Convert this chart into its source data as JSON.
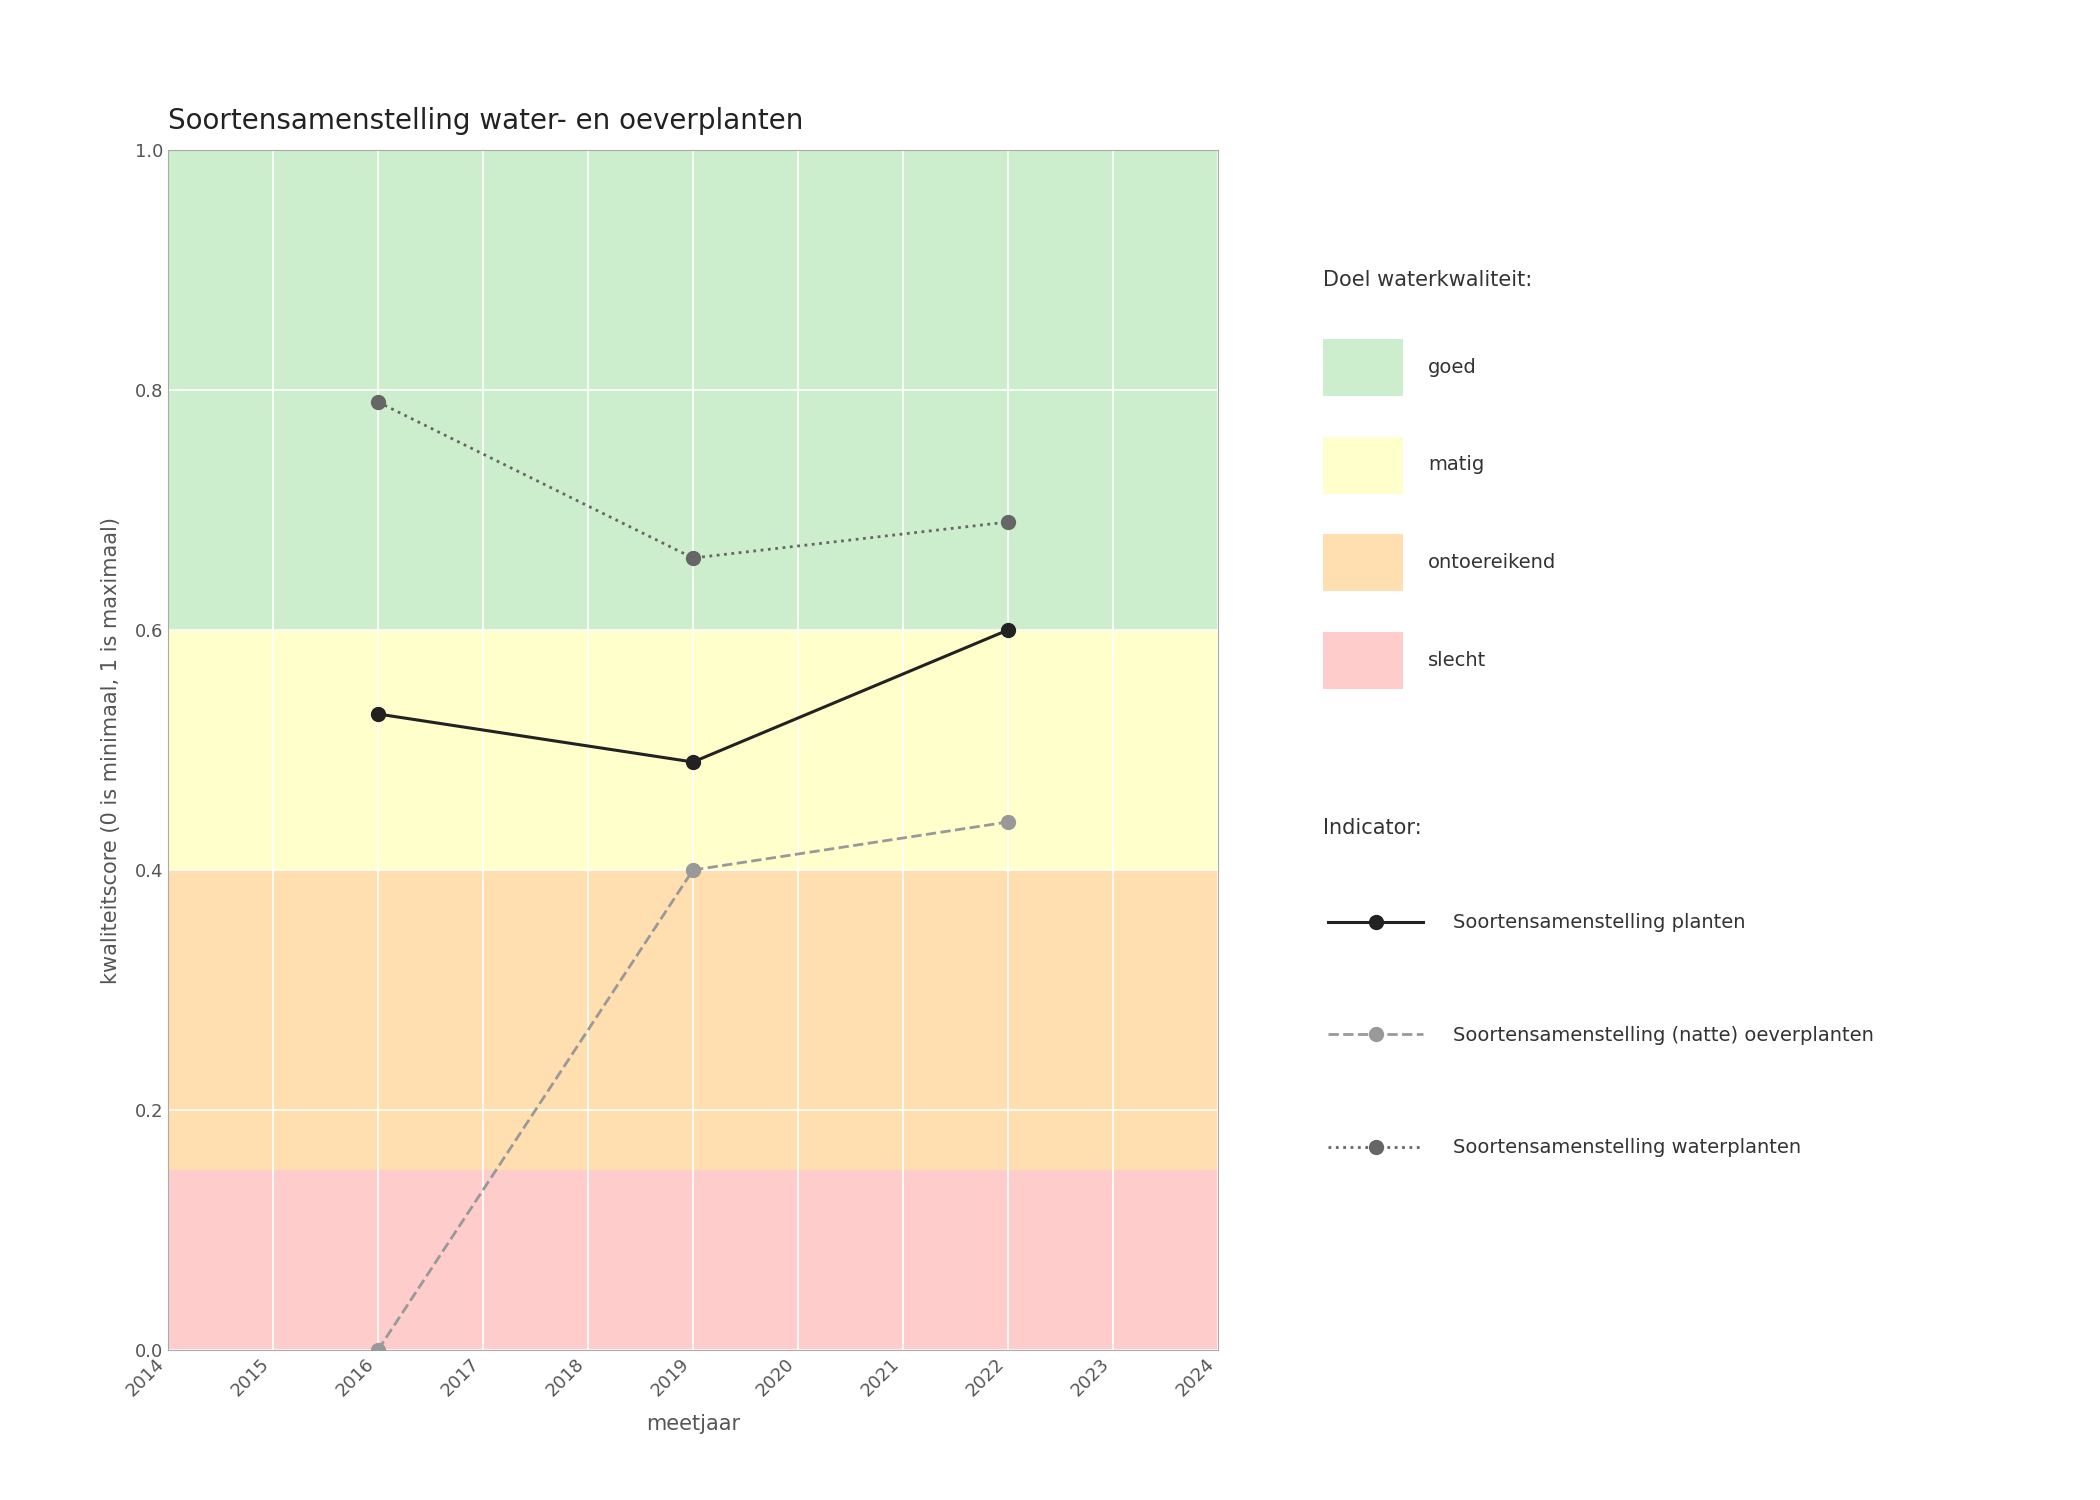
{
  "title": "Soortensamenstelling water- en oeverplanten",
  "xlabel": "meetjaar",
  "ylabel": "kwaliteitscore (0 is minimaal, 1 is maximaal)",
  "xlim": [
    2014,
    2024
  ],
  "ylim": [
    0.0,
    1.0
  ],
  "xticks": [
    2014,
    2015,
    2016,
    2017,
    2018,
    2019,
    2020,
    2021,
    2022,
    2023,
    2024
  ],
  "yticks": [
    0.0,
    0.2,
    0.4,
    0.6,
    0.8,
    1.0
  ],
  "bg_bands": [
    {
      "ymin": 0.0,
      "ymax": 0.15,
      "color": "#FFCCCC",
      "label": "slecht"
    },
    {
      "ymin": 0.15,
      "ymax": 0.4,
      "color": "#FFDFB0",
      "label": "ontoereikend"
    },
    {
      "ymin": 0.4,
      "ymax": 0.6,
      "color": "#FFFFCC",
      "label": "matig"
    },
    {
      "ymin": 0.6,
      "ymax": 1.0,
      "color": "#CCEECC",
      "label": "goed"
    }
  ],
  "series": [
    {
      "name": "Soortensamenstelling planten",
      "x": [
        2016,
        2019,
        2022
      ],
      "y": [
        0.53,
        0.49,
        0.6
      ],
      "color": "#222222",
      "linestyle": "-",
      "marker": "o",
      "markersize": 10,
      "linewidth": 2.2,
      "zorder": 5
    },
    {
      "name": "Soortensamenstelling (natte) oeverplanten",
      "x": [
        2016,
        2019,
        2022
      ],
      "y": [
        0.0,
        0.4,
        0.44
      ],
      "color": "#999999",
      "linestyle": "--",
      "marker": "o",
      "markersize": 10,
      "linewidth": 2.0,
      "zorder": 4
    },
    {
      "name": "Soortensamenstelling waterplanten",
      "x": [
        2016,
        2019,
        2022
      ],
      "y": [
        0.79,
        0.66,
        0.69
      ],
      "color": "#666666",
      "linestyle": ":",
      "marker": "o",
      "markersize": 10,
      "linewidth": 2.0,
      "zorder": 4
    }
  ],
  "legend_quality_title": "Doel waterkwaliteit:",
  "legend_indicator_title": "Indicator:",
  "bg_color": "#FFFFFF",
  "title_fontsize": 20,
  "label_fontsize": 15,
  "tick_fontsize": 13,
  "legend_fontsize": 14
}
